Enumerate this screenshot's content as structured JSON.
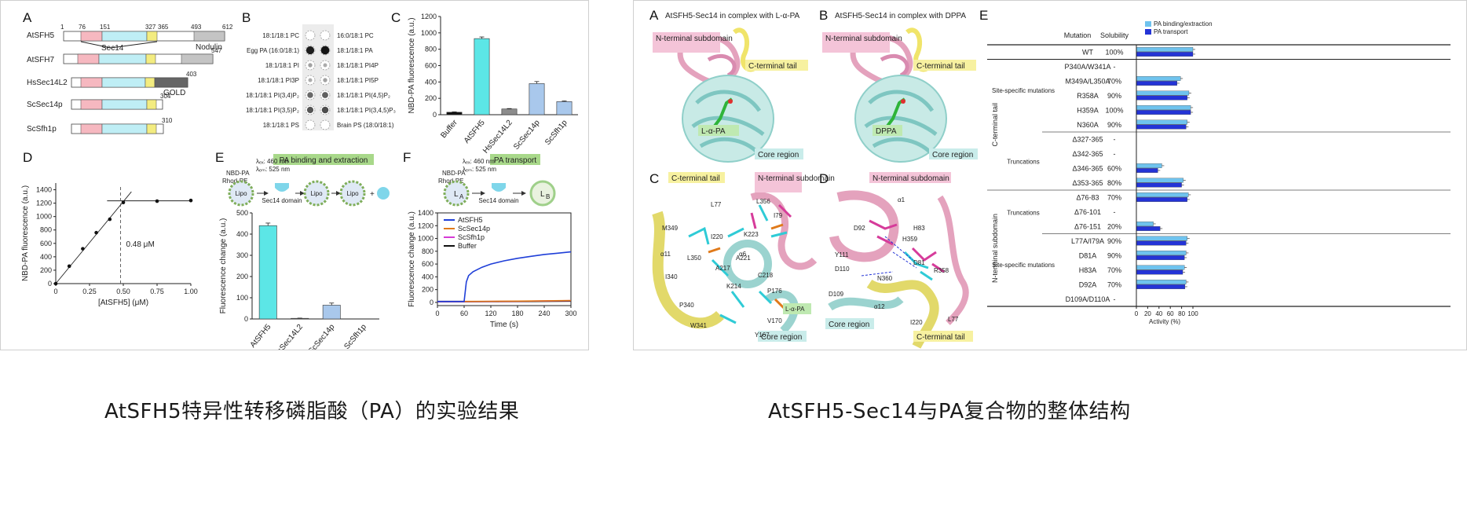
{
  "captions": {
    "left": "AtSFH5特异性转移磷脂酸（PA）的实验结果",
    "right": "AtSFH5-Sec14与PA复合物的整体结构"
  },
  "left_figure": {
    "panel_labels": [
      "A",
      "B",
      "C",
      "D",
      "E",
      "F"
    ],
    "panelA": {
      "proteins": [
        "AtSFH5",
        "AtSFH7",
        "HsSec14L2",
        "ScSec14p",
        "ScSfh1p"
      ],
      "numbers": {
        "start": "1",
        "n76": "76",
        "n151": "151",
        "n327": "327",
        "n365": "365",
        "n493": "493",
        "n612": "612",
        "n547": "547",
        "n403": "403",
        "n304": "304",
        "n310": "310"
      },
      "domain_labels": {
        "sec14": "Sec14",
        "nodulin": "Nodulin",
        "gold": "GOLD"
      }
    },
    "panelB": {
      "left_lipids": [
        "18:1/18:1 PC",
        "Egg PA (16:0/18:1)",
        "18:1/18:1 PI",
        "18:1/18:1 PI3P",
        "18:1/18:1 PI(3,4)P₂",
        "18:1/18:1 PI(3,5)P₂",
        "18:1/18:1 PS"
      ],
      "right_lipids": [
        "16:0/18:1 PC",
        "18:1/18:1 PA",
        "18:1/18:1 PI4P",
        "18:1/18:1 PI5P",
        "18:1/18:1 PI(4,5)P₂",
        "18:1/18:1 PI(3,4,5)P₃",
        "Brain PS (18:0/18:1)"
      ]
    },
    "panelC": {
      "chart_data": {
        "type": "bar",
        "ylabel": "NBD-PA fluorescence (a.u.)",
        "categories": [
          "Buffer",
          "AtSFH5",
          "HsSec14L2",
          "ScSec14p",
          "ScSfh1p"
        ],
        "values": [
          30,
          930,
          70,
          380,
          160
        ],
        "errors": [
          5,
          20,
          5,
          25,
          8
        ],
        "ylim": [
          0,
          1200
        ],
        "yticks": [
          "0",
          "200",
          "400",
          "600",
          "800",
          "1000",
          "1200"
        ],
        "colors": [
          "#111111",
          "#5ce6e6",
          "#8c8c8c",
          "#a9c8ec",
          "#a9c8ec"
        ]
      }
    },
    "panelD": {
      "chart_data": {
        "type": "scatter",
        "ylabel": "NBD-PA fluorescence (a.u.)",
        "xlabel": "[AtSFH5] (μM)",
        "x": [
          0,
          0.1,
          0.2,
          0.3,
          0.4,
          0.5,
          0.75,
          1.0
        ],
        "y": [
          0,
          260,
          520,
          760,
          960,
          1210,
          1230,
          1240
        ],
        "xlim": [
          0,
          1.0
        ],
        "ylim": [
          0,
          1500
        ],
        "xticks": [
          "0",
          "0.25",
          "0.50",
          "0.75",
          "1.00"
        ],
        "yticks": [
          "0",
          "200",
          "400",
          "600",
          "800",
          "1000",
          "1200",
          "1400"
        ],
        "annotation": "0.48 μM"
      }
    },
    "panelE": {
      "banner": "PA binding and extraction",
      "labels": {
        "nbd": "NBD-PA",
        "rhod": "Rhod-PE",
        "lipo": "Lipo",
        "domain": "Sec14 domain",
        "ex": "λₑₓ: 460 nm",
        "em": "λₑₘ: 525 nm"
      },
      "chart_data": {
        "type": "bar",
        "ylabel": "Fluorescence change (a.u.)",
        "categories": [
          "AtSFH5",
          "HsSec14L2",
          "ScSec14p",
          "ScSfh1p"
        ],
        "values": [
          440,
          3,
          65,
          0
        ],
        "errors": [
          12,
          1,
          10,
          0
        ],
        "ylim": [
          0,
          500
        ],
        "yticks": [
          "0",
          "100",
          "200",
          "300",
          "400",
          "500"
        ],
        "colors": [
          "#5ce6e6",
          "#8c8c8c",
          "#a9c8ec",
          "#a9c8ec"
        ]
      }
    },
    "panelF": {
      "banner": "PA transport",
      "labels": {
        "nbd": "NBD-PA",
        "rhod": "Rhod-PE",
        "la": "L",
        "lb": "L",
        "sa": "A",
        "sb": "B",
        "domain": "Sec14 domain",
        "ex": "λₑₓ: 460 nm",
        "em": "λₑₘ: 525 nm"
      },
      "chart_data": {
        "type": "line",
        "ylabel": "Fluorescence change (a.u.)",
        "xlabel": "Time (s)",
        "xlim": [
          0,
          300
        ],
        "ylim": [
          -50,
          1400
        ],
        "xticks": [
          "0",
          "60",
          "120",
          "180",
          "240",
          "300"
        ],
        "yticks": [
          "0",
          "200",
          "400",
          "600",
          "800",
          "1000",
          "1200",
          "1400"
        ],
        "series": [
          {
            "name": "AtSFH5",
            "color": "#1f3fd8",
            "x": [
              0,
              60,
              65,
              70,
              80,
              100,
              120,
              150,
              180,
              210,
              240,
              270,
              300
            ],
            "y": [
              15,
              15,
              320,
              420,
              480,
              550,
              600,
              650,
              690,
              720,
              750,
              770,
              790
            ]
          },
          {
            "name": "ScSec14p",
            "color": "#e07a1a",
            "x": [
              0,
              60,
              120,
              180,
              240,
              300
            ],
            "y": [
              15,
              15,
              18,
              20,
              25,
              30
            ]
          },
          {
            "name": "ScSfh1p",
            "color": "#d63bd6",
            "x": [
              0,
              60,
              120,
              180,
              240,
              300
            ],
            "y": [
              12,
              12,
              15,
              18,
              22,
              28
            ]
          },
          {
            "name": "Buffer",
            "color": "#111111",
            "x": [
              0,
              60,
              120,
              180,
              240,
              300
            ],
            "y": [
              10,
              10,
              12,
              14,
              16,
              20
            ]
          }
        ]
      }
    }
  },
  "right_figure": {
    "panel_labels": [
      "A",
      "B",
      "C",
      "D",
      "E"
    ],
    "panelA": {
      "title": "AtSFH5-Sec14 in complex with L-α-PA",
      "labels": {
        "nterm": "N-terminal subdomain",
        "cterm": "C-terminal tail",
        "lig": "L-α-PA",
        "core": "Core region"
      }
    },
    "panelB": {
      "title": "AtSFH5-Sec14 in complex with DPPA",
      "labels": {
        "nterm": "N-terminal subdomain",
        "cterm": "C-terminal tail",
        "lig": "DPPA",
        "core": "Core region"
      }
    },
    "panelC": {
      "labels": {
        "cterm": "C-terminal tail",
        "nterm": "N-terminal subdomain",
        "core": "Core region",
        "lig": "L-α-PA"
      },
      "residues": [
        "M349",
        "L77",
        "L356",
        "I79",
        "I220",
        "K223",
        "α6",
        "α11",
        "L350",
        "A221",
        "A217",
        "I340",
        "K214",
        "C218",
        "P340",
        "P176",
        "W341",
        "V170",
        "Y167"
      ]
    },
    "panelD": {
      "labels": {
        "nterm": "N-terminal subdomain",
        "cterm": "C-terminal tail",
        "core": "Core region"
      },
      "residues": [
        "α1",
        "D92",
        "H83",
        "H359",
        "Y111",
        "D81",
        "D110",
        "N360",
        "R358",
        "D109",
        "α12",
        "I220",
        "L77"
      ]
    },
    "panelE": {
      "legend": [
        "PA binding/extraction",
        "PA transport"
      ],
      "col_headers": {
        "mutation": "Mutation",
        "solubility": "Solubility"
      },
      "groups": {
        "cterm": "C-terminal tail",
        "nterm": "N-terminal subdomain",
        "site": "Site-specific mutations",
        "trunc": "Truncations"
      },
      "xlabel": "Activity (%)",
      "xticks": [
        "0",
        "20",
        "40",
        "60",
        "80",
        "100"
      ],
      "chart_data": {
        "type": "bar",
        "x_label": "Activity (%)",
        "xlim": [
          0,
          100
        ],
        "categories": [
          "WT",
          "P340A/W341A",
          "M349A/L350A",
          "R358A",
          "H359A",
          "N360A",
          "Δ327-365",
          "Δ342-365",
          "Δ346-365",
          "Δ353-365",
          "Δ76-83",
          "Δ76-101",
          "Δ76-151",
          "L77A/I79A",
          "D81A",
          "H83A",
          "D92A",
          "D109A/D110A"
        ],
        "solubility": [
          "100%",
          "-",
          "70%",
          "90%",
          "100%",
          "90%",
          "-",
          "-",
          "60%",
          "80%",
          "70%",
          "-",
          "20%",
          "90%",
          "90%",
          "70%",
          "70%",
          "-"
        ],
        "series": [
          {
            "name": "PA binding/extraction",
            "color": "#6fc3ee",
            "values": [
              100,
              0,
              78,
              93,
              96,
              90,
              0,
              0,
              45,
              83,
              92,
              0,
              30,
              90,
              88,
              85,
              88,
              0
            ]
          },
          {
            "name": "PA transport",
            "color": "#2434d6",
            "values": [
              100,
              0,
              72,
              90,
              96,
              88,
              0,
              0,
              38,
              80,
              90,
              0,
              42,
              88,
              85,
              82,
              86,
              0
            ]
          }
        ]
      }
    }
  }
}
